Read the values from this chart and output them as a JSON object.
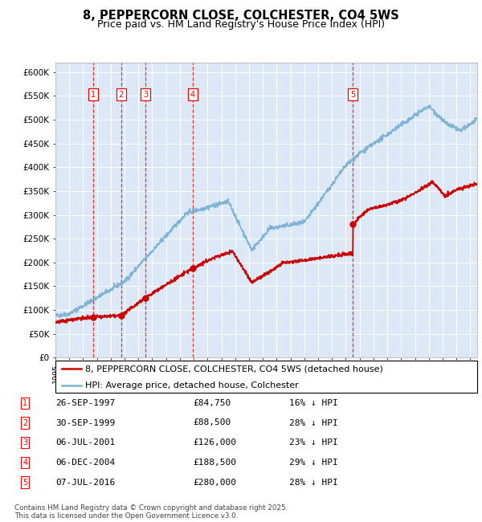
{
  "title": "8, PEPPERCORN CLOSE, COLCHESTER, CO4 5WS",
  "subtitle": "Price paid vs. HM Land Registry's House Price Index (HPI)",
  "ylabel_ticks": [
    "£0",
    "£50K",
    "£100K",
    "£150K",
    "£200K",
    "£250K",
    "£300K",
    "£350K",
    "£400K",
    "£450K",
    "£500K",
    "£550K",
    "£600K"
  ],
  "ytick_vals": [
    0,
    50000,
    100000,
    150000,
    200000,
    250000,
    300000,
    350000,
    400000,
    450000,
    500000,
    550000,
    600000
  ],
  "xlim_start": 1995.0,
  "xlim_end": 2025.5,
  "ylim": [
    0,
    620000
  ],
  "background_color": "#dce8f5",
  "plot_bg_color": "#dce8f5",
  "grid_color": "#ffffff",
  "hpi_line_color": "#7fb3d3",
  "price_line_color": "#cc0000",
  "vline_color": "#ee3333",
  "sale_marker_color": "#cc0000",
  "legend_line1": "8, PEPPERCORN CLOSE, COLCHESTER, CO4 5WS (detached house)",
  "legend_line2": "HPI: Average price, detached house, Colchester",
  "transactions": [
    {
      "num": 1,
      "date": "26-SEP-1997",
      "year": 1997.73,
      "price": 84750,
      "pct": "16%",
      "dir": "↓"
    },
    {
      "num": 2,
      "date": "30-SEP-1999",
      "year": 1999.75,
      "price": 88500,
      "pct": "28%",
      "dir": "↓"
    },
    {
      "num": 3,
      "date": "06-JUL-2001",
      "year": 2001.51,
      "price": 126000,
      "pct": "23%",
      "dir": "↓"
    },
    {
      "num": 4,
      "date": "06-DEC-2004",
      "year": 2004.93,
      "price": 188500,
      "pct": "29%",
      "dir": "↓"
    },
    {
      "num": 5,
      "date": "07-JUL-2016",
      "year": 2016.51,
      "price": 280000,
      "pct": "28%",
      "dir": "↓"
    }
  ],
  "footer": "Contains HM Land Registry data © Crown copyright and database right 2025.\nThis data is licensed under the Open Government Licence v3.0.",
  "title_fontsize": 10.5,
  "subtitle_fontsize": 9,
  "tick_fontsize": 7.5,
  "legend_fontsize": 8,
  "table_fontsize": 8
}
